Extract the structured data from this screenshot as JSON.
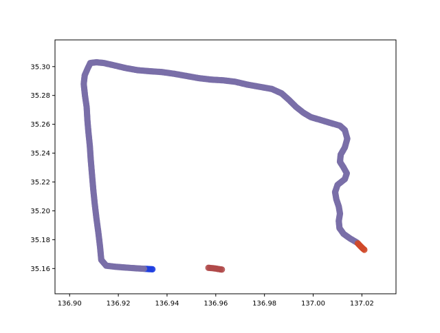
{
  "chart_data": {
    "type": "scatter",
    "title": "",
    "xlabel": "",
    "ylabel": "",
    "xlim": [
      136.894,
      137.034
    ],
    "ylim": [
      35.1425,
      35.3185
    ],
    "xticks": [
      "136.90",
      "136.92",
      "136.94",
      "136.96",
      "136.98",
      "137.00",
      "137.02"
    ],
    "xtick_values": [
      136.9,
      136.92,
      136.94,
      136.96,
      136.98,
      137.0,
      137.02
    ],
    "yticks": [
      "35.16",
      "35.18",
      "35.20",
      "35.22",
      "35.24",
      "35.26",
      "35.28",
      "35.30"
    ],
    "ytick_values": [
      35.16,
      35.18,
      35.2,
      35.22,
      35.24,
      35.26,
      35.28,
      35.3
    ],
    "grid": false,
    "marker": "circle",
    "colors": [
      "#7a6fa8",
      "#9a5a7a",
      "#8c6a8f",
      "#a7a05a",
      "#5a8f7a",
      "#b04a4a",
      "#6a7fb0",
      "#c45a3a"
    ],
    "start_color": "#1f3fe0",
    "end_color": "#d04a2a",
    "series": [
      {
        "points": [
          [
            136.934,
            35.1595
          ],
          [
            136.931,
            35.1598
          ],
          [
            136.927,
            35.1602
          ],
          [
            136.923,
            35.1607
          ],
          [
            136.919,
            35.1612
          ],
          [
            136.915,
            35.162
          ],
          [
            136.913,
            35.166
          ],
          [
            136.9125,
            35.175
          ],
          [
            136.9118,
            35.185
          ],
          [
            136.911,
            35.195
          ],
          [
            136.9103,
            35.205
          ],
          [
            136.9097,
            35.215
          ],
          [
            136.9092,
            35.225
          ],
          [
            136.9087,
            35.235
          ],
          [
            136.9083,
            35.245
          ],
          [
            136.9077,
            35.255
          ],
          [
            136.9073,
            35.263
          ],
          [
            136.907,
            35.272
          ],
          [
            136.9063,
            35.28
          ],
          [
            136.9058,
            35.288
          ],
          [
            136.9062,
            35.294
          ],
          [
            136.9075,
            35.299
          ],
          [
            136.9085,
            35.3025
          ],
          [
            136.911,
            35.303
          ],
          [
            136.914,
            35.3025
          ],
          [
            136.918,
            35.301
          ],
          [
            136.923,
            35.299
          ],
          [
            136.928,
            35.2975
          ],
          [
            136.933,
            35.2968
          ],
          [
            136.938,
            35.2962
          ],
          [
            136.943,
            35.295
          ],
          [
            136.948,
            35.2935
          ],
          [
            136.953,
            35.292
          ],
          [
            136.958,
            35.291
          ],
          [
            136.963,
            35.2905
          ],
          [
            136.968,
            35.2895
          ],
          [
            136.973,
            35.2875
          ],
          [
            136.978,
            35.286
          ],
          [
            136.983,
            35.2845
          ],
          [
            136.987,
            35.2815
          ],
          [
            136.99,
            35.277
          ],
          [
            136.993,
            35.272
          ],
          [
            136.996,
            35.268
          ],
          [
            136.999,
            35.265
          ],
          [
            137.003,
            35.263
          ],
          [
            137.007,
            35.261
          ],
          [
            137.011,
            35.259
          ],
          [
            137.013,
            35.256
          ],
          [
            137.014,
            35.25
          ],
          [
            137.013,
            35.244
          ],
          [
            137.0113,
            35.239
          ],
          [
            137.011,
            35.234
          ],
          [
            137.0125,
            35.23
          ],
          [
            137.0138,
            35.226
          ],
          [
            137.013,
            35.222
          ],
          [
            137.01,
            35.218
          ],
          [
            137.009,
            35.213
          ],
          [
            137.0095,
            35.208
          ],
          [
            137.0105,
            35.203
          ],
          [
            137.011,
            35.198
          ],
          [
            137.0105,
            35.193
          ],
          [
            137.0108,
            35.188
          ],
          [
            137.0125,
            35.184
          ],
          [
            137.015,
            35.181
          ],
          [
            137.018,
            35.178
          ],
          [
            137.02,
            35.1745
          ],
          [
            137.021,
            35.173
          ]
        ]
      },
      {
        "points": [
          [
            136.957,
            35.1605
          ],
          [
            136.9585,
            35.1603
          ],
          [
            136.96,
            35.16
          ],
          [
            136.961,
            35.1597
          ],
          [
            136.9625,
            35.1593
          ]
        ]
      }
    ]
  }
}
